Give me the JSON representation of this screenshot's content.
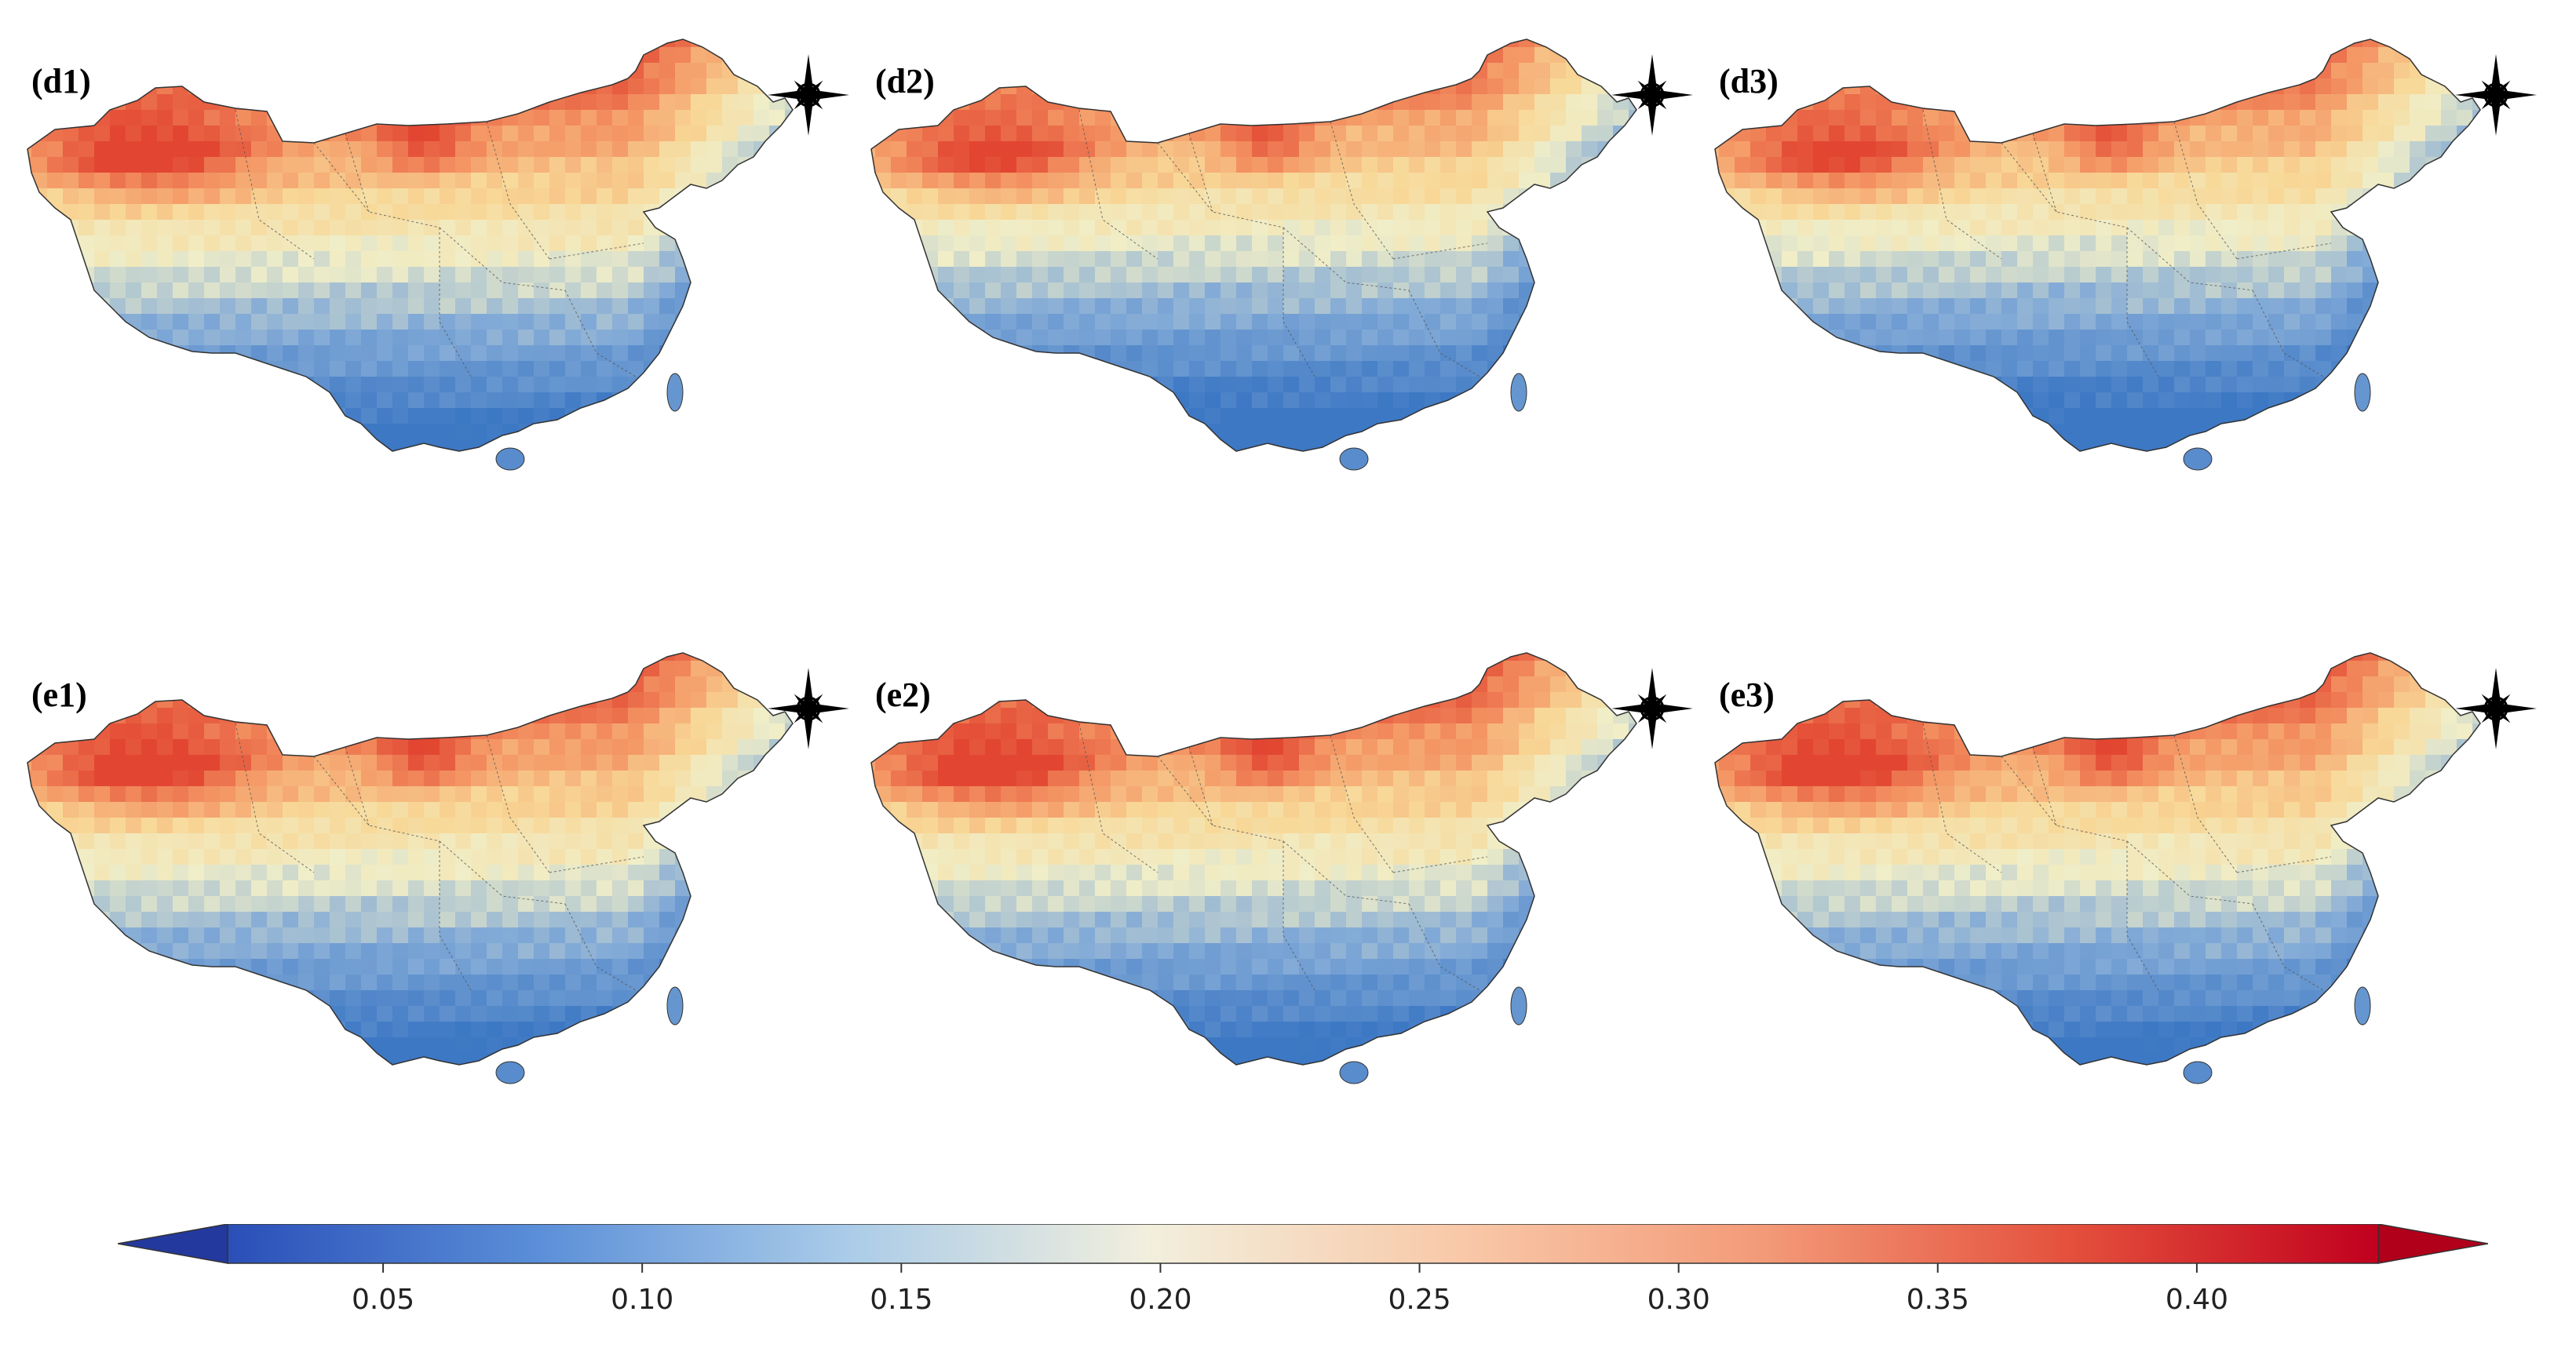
{
  "panels": [
    {
      "label": "(d1)",
      "variant": "d1"
    },
    {
      "label": "(d2)",
      "variant": "d2"
    },
    {
      "label": "(d3)",
      "variant": "d3"
    },
    {
      "label": "(e1)",
      "variant": "e1"
    },
    {
      "label": "(e2)",
      "variant": "e2"
    },
    {
      "label": "(e3)",
      "variant": "e3"
    }
  ],
  "colorbar": {
    "min": 0.02,
    "max": 0.435,
    "ticks": [
      "0.05",
      "0.10",
      "0.15",
      "0.20",
      "0.25",
      "0.30",
      "0.35",
      "0.40"
    ],
    "tick_values": [
      0.05,
      0.1,
      0.15,
      0.2,
      0.25,
      0.3,
      0.35,
      0.4
    ],
    "extend": "both",
    "colors": [
      "#2a4fb8",
      "#5a8ed8",
      "#a9cbe8",
      "#f2efdd",
      "#f8c9a9",
      "#f39a78",
      "#e4503c",
      "#c1001e"
    ]
  },
  "colors": {
    "high": "#ef5a3a",
    "mid_high": "#f6a26f",
    "mid": "#f5f0c8",
    "mid_low": "#a9c7de",
    "low": "#3d78c4"
  }
}
